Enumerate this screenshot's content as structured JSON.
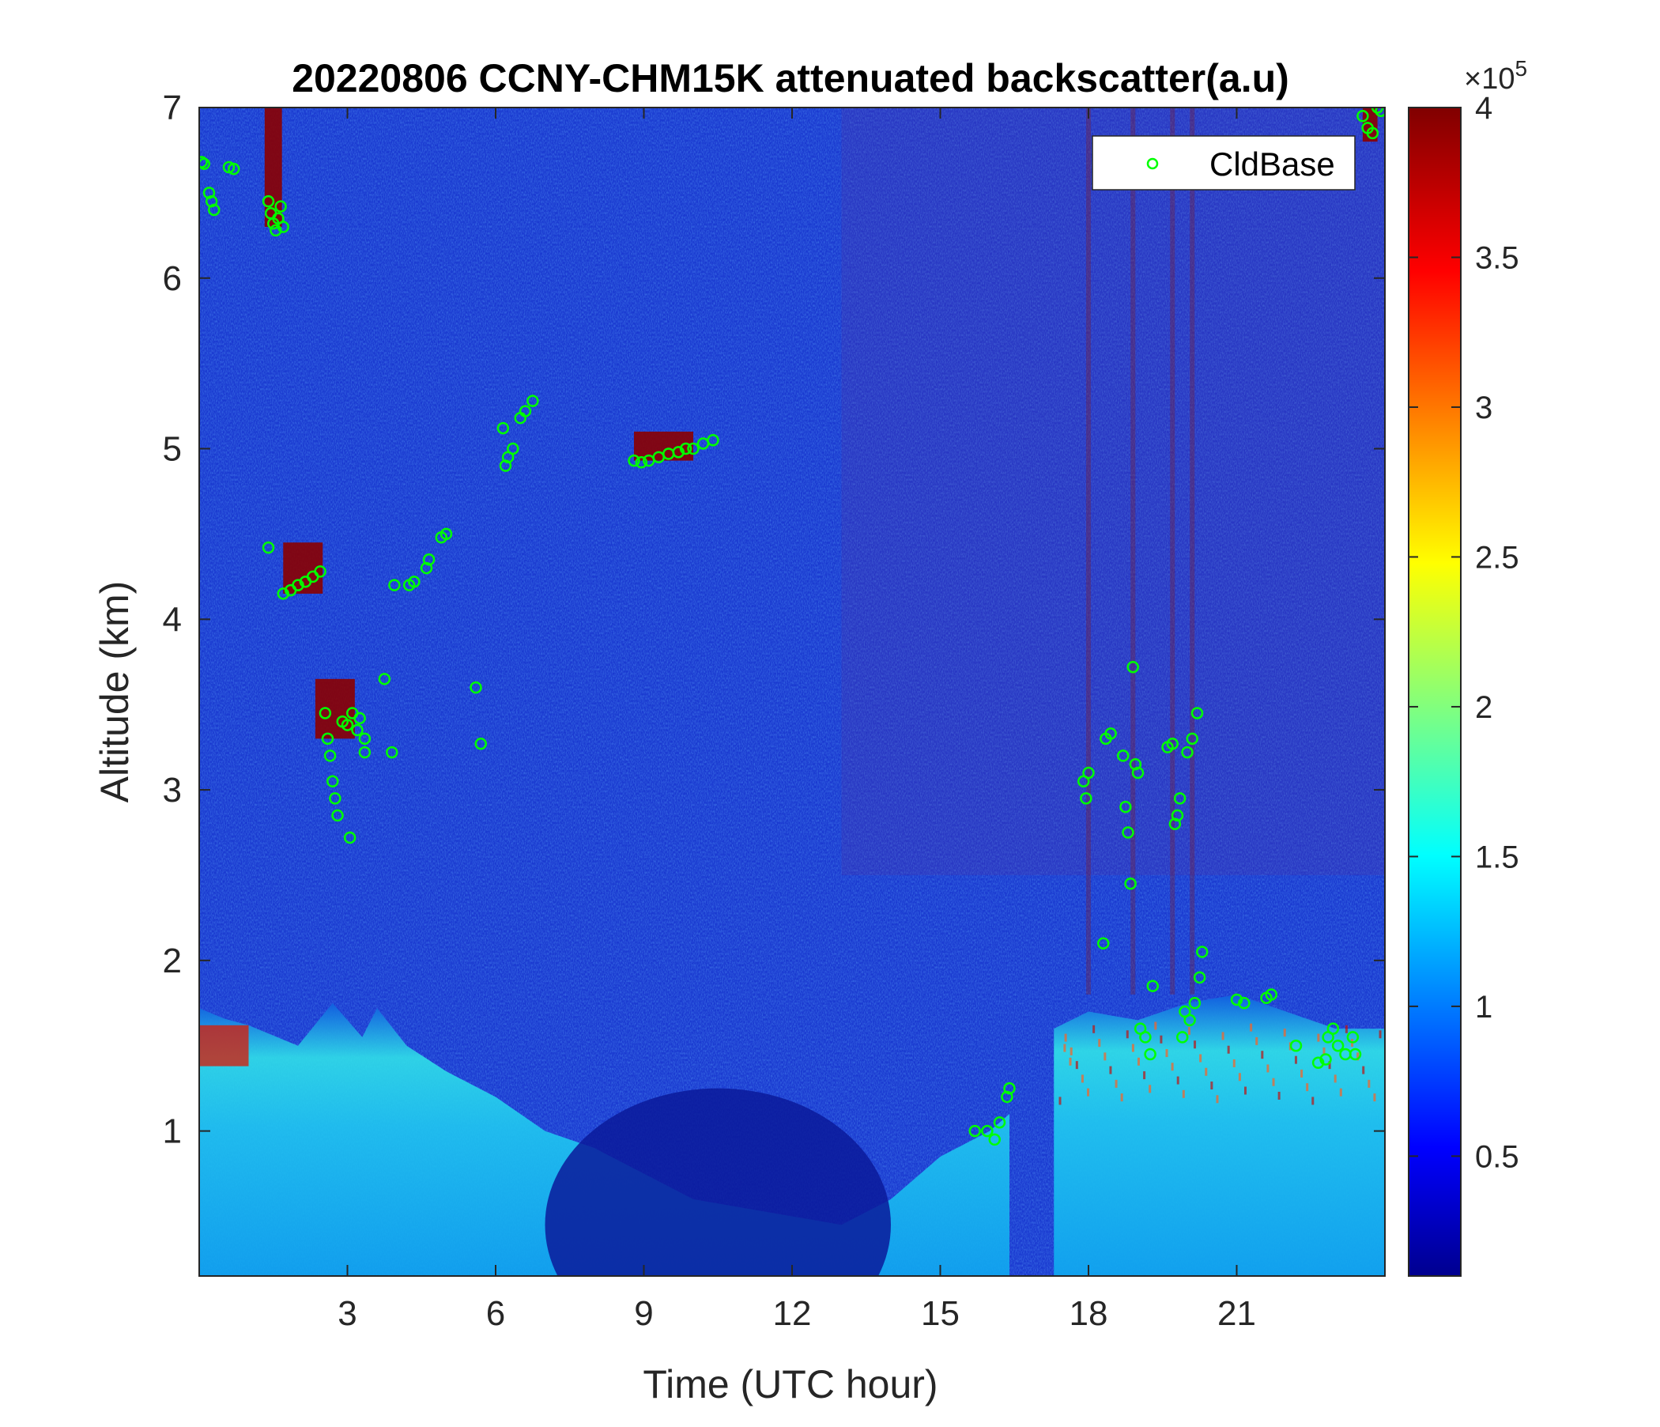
{
  "chart_data": {
    "type": "heatmap",
    "title": "20220806 CCNY-CHM15K attenuated backscatter(a.u)",
    "xlabel": "Time (UTC hour)",
    "ylabel": "Altitude (km)",
    "xlim": [
      0,
      24
    ],
    "ylim": [
      0.15,
      7
    ],
    "xticks": [
      3,
      6,
      9,
      12,
      15,
      18,
      21
    ],
    "xtick_labels": [
      "3",
      "6",
      "9",
      "12",
      "15",
      "18",
      "21"
    ],
    "yticks": [
      1,
      2,
      3,
      4,
      5,
      6,
      7
    ],
    "ytick_labels": [
      "1",
      "2",
      "3",
      "4",
      "5",
      "6",
      "7"
    ],
    "colorbar": {
      "colormap": "jet",
      "clim": [
        10000,
        400000
      ],
      "exponent_label_base": "×10",
      "exponent_label_power": "5",
      "ticks": [
        0.5,
        1,
        1.5,
        2,
        2.5,
        3,
        3.5,
        4
      ],
      "tick_labels": [
        "0.5",
        "1",
        "1.5",
        "2",
        "2.5",
        "3",
        "3.5",
        "4"
      ]
    },
    "legend": {
      "placement": "top-right",
      "entries": [
        {
          "label": "CldBase",
          "marker": "circle",
          "color": "#00ff00"
        }
      ]
    },
    "background_description": "noisy backscatter; boundary layer aerosol 0-1.8 km, strong signal (red) near 1.5 km at 0-1 UTC",
    "cloud_base_series": {
      "name": "CldBase",
      "points": [
        [
          0.05,
          6.68
        ],
        [
          0.1,
          6.67
        ],
        [
          0.2,
          6.5
        ],
        [
          0.25,
          6.45
        ],
        [
          0.3,
          6.4
        ],
        [
          0.6,
          6.65
        ],
        [
          0.7,
          6.64
        ],
        [
          1.4,
          6.45
        ],
        [
          1.45,
          6.38
        ],
        [
          1.5,
          6.32
        ],
        [
          1.55,
          6.28
        ],
        [
          1.6,
          6.35
        ],
        [
          1.65,
          6.42
        ],
        [
          1.7,
          6.3
        ],
        [
          1.4,
          4.42
        ],
        [
          1.7,
          4.15
        ],
        [
          1.85,
          4.17
        ],
        [
          2.0,
          4.2
        ],
        [
          2.15,
          4.22
        ],
        [
          2.3,
          4.25
        ],
        [
          2.45,
          4.28
        ],
        [
          2.55,
          3.45
        ],
        [
          2.6,
          3.3
        ],
        [
          2.65,
          3.2
        ],
        [
          2.7,
          3.05
        ],
        [
          2.75,
          2.95
        ],
        [
          2.8,
          2.85
        ],
        [
          2.9,
          3.4
        ],
        [
          3.0,
          3.38
        ],
        [
          3.05,
          2.72
        ],
        [
          3.1,
          3.45
        ],
        [
          3.2,
          3.35
        ],
        [
          3.25,
          3.42
        ],
        [
          3.35,
          3.3
        ],
        [
          3.35,
          3.22
        ],
        [
          3.75,
          3.65
        ],
        [
          3.9,
          3.22
        ],
        [
          3.95,
          4.2
        ],
        [
          4.25,
          4.2
        ],
        [
          4.35,
          4.22
        ],
        [
          4.6,
          4.3
        ],
        [
          4.65,
          4.35
        ],
        [
          4.9,
          4.48
        ],
        [
          5.0,
          4.5
        ],
        [
          5.6,
          3.6
        ],
        [
          5.7,
          3.27
        ],
        [
          6.15,
          5.12
        ],
        [
          6.2,
          4.9
        ],
        [
          6.25,
          4.95
        ],
        [
          6.35,
          5.0
        ],
        [
          6.5,
          5.18
        ],
        [
          6.6,
          5.22
        ],
        [
          6.75,
          5.28
        ],
        [
          8.8,
          4.93
        ],
        [
          8.95,
          4.92
        ],
        [
          9.1,
          4.93
        ],
        [
          9.3,
          4.95
        ],
        [
          9.5,
          4.97
        ],
        [
          9.7,
          4.98
        ],
        [
          9.85,
          5.0
        ],
        [
          10.0,
          5.0
        ],
        [
          10.2,
          5.03
        ],
        [
          10.4,
          5.05
        ],
        [
          15.7,
          1.0
        ],
        [
          15.95,
          1.0
        ],
        [
          16.1,
          0.95
        ],
        [
          16.2,
          1.05
        ],
        [
          16.35,
          1.2
        ],
        [
          16.4,
          1.25
        ],
        [
          17.9,
          3.05
        ],
        [
          17.95,
          2.95
        ],
        [
          18.0,
          3.1
        ],
        [
          18.35,
          3.3
        ],
        [
          18.45,
          3.33
        ],
        [
          18.7,
          3.2
        ],
        [
          18.75,
          2.9
        ],
        [
          18.8,
          2.75
        ],
        [
          18.85,
          2.45
        ],
        [
          18.9,
          3.72
        ],
        [
          18.3,
          2.1
        ],
        [
          18.95,
          3.15
        ],
        [
          19.0,
          3.1
        ],
        [
          19.05,
          1.6
        ],
        [
          19.15,
          1.55
        ],
        [
          19.25,
          1.45
        ],
        [
          19.3,
          1.85
        ],
        [
          19.6,
          3.25
        ],
        [
          19.7,
          3.27
        ],
        [
          19.75,
          2.8
        ],
        [
          19.8,
          2.85
        ],
        [
          19.85,
          2.95
        ],
        [
          19.9,
          1.55
        ],
        [
          19.95,
          1.7
        ],
        [
          20.0,
          3.22
        ],
        [
          20.05,
          1.65
        ],
        [
          20.1,
          3.3
        ],
        [
          20.15,
          1.75
        ],
        [
          20.2,
          3.45
        ],
        [
          20.25,
          1.9
        ],
        [
          20.3,
          2.05
        ],
        [
          21.0,
          1.77
        ],
        [
          21.15,
          1.75
        ],
        [
          21.6,
          1.78
        ],
        [
          21.7,
          1.8
        ],
        [
          22.2,
          1.5
        ],
        [
          22.65,
          1.4
        ],
        [
          22.8,
          1.42
        ],
        [
          22.85,
          1.55
        ],
        [
          22.95,
          1.6
        ],
        [
          23.05,
          1.5
        ],
        [
          23.2,
          1.45
        ],
        [
          23.35,
          1.55
        ],
        [
          23.4,
          1.45
        ],
        [
          23.55,
          6.95
        ],
        [
          23.65,
          6.88
        ],
        [
          23.75,
          6.85
        ],
        [
          23.85,
          7.0
        ],
        [
          23.92,
          6.98
        ]
      ]
    }
  }
}
